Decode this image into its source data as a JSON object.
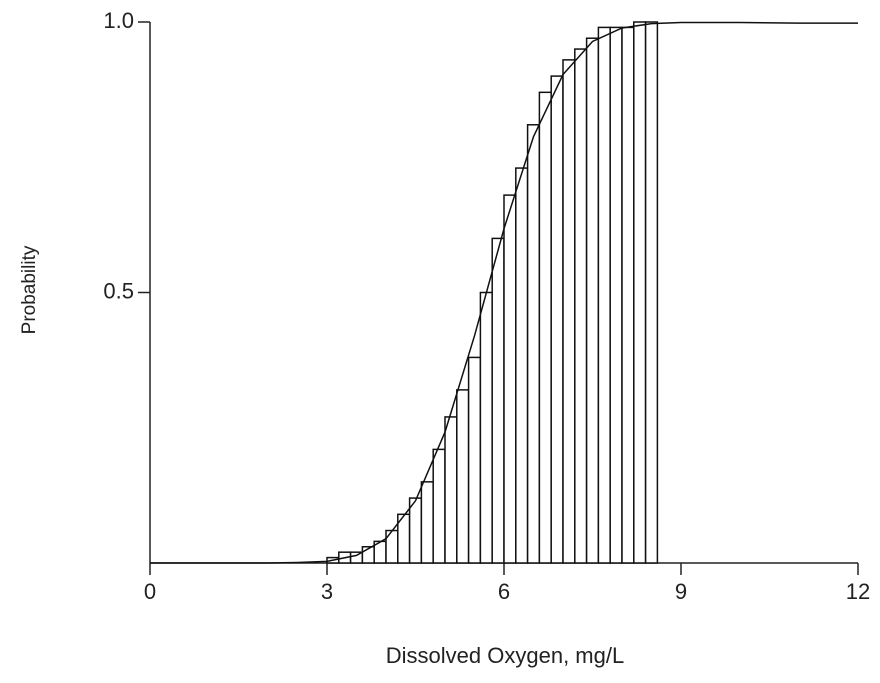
{
  "chart_data": {
    "type": "histogram",
    "x_label": "Dissolved Oxygen, mg/L",
    "y_label": "Probability",
    "bins": [
      3.0,
      3.2,
      3.4,
      3.6,
      3.8,
      4.0,
      4.2,
      4.4,
      4.6,
      4.8,
      5.0,
      5.2,
      5.4,
      5.6,
      5.8,
      6.0,
      6.2,
      6.4,
      6.6,
      6.8,
      7.0,
      7.2,
      7.4,
      7.6,
      7.8,
      8.0,
      8.2,
      8.4,
      8.6
    ],
    "values": [
      0.01,
      0.02,
      0.02,
      0.03,
      0.04,
      0.06,
      0.09,
      0.12,
      0.15,
      0.21,
      0.27,
      0.32,
      0.38,
      0.5,
      0.6,
      0.68,
      0.73,
      0.81,
      0.87,
      0.9,
      0.93,
      0.95,
      0.97,
      0.99,
      0.99,
      0.99,
      1.0,
      1.0
    ],
    "color": "#ffffff",
    "curve": {
      "x": [
        0,
        1,
        2,
        2.5,
        3,
        3.5,
        4,
        4.5,
        5,
        5.5,
        6,
        6.5,
        7,
        7.5,
        8,
        8.5,
        9,
        10,
        11,
        12
      ],
      "y": [
        0,
        0,
        0,
        0.001,
        0.003,
        0.014,
        0.045,
        0.115,
        0.242,
        0.42,
        0.618,
        0.788,
        0.903,
        0.964,
        0.989,
        0.997,
        0.999,
        0.999,
        0.998,
        0.998
      ]
    },
    "xlim": [
      0,
      12
    ],
    "xticks": [
      0,
      3,
      6,
      9,
      12
    ],
    "ylim": [
      0,
      1
    ],
    "yticks": [
      0.5,
      {
        "value": 1,
        "label": "1.0"
      }
    ],
    "grid": false
  }
}
